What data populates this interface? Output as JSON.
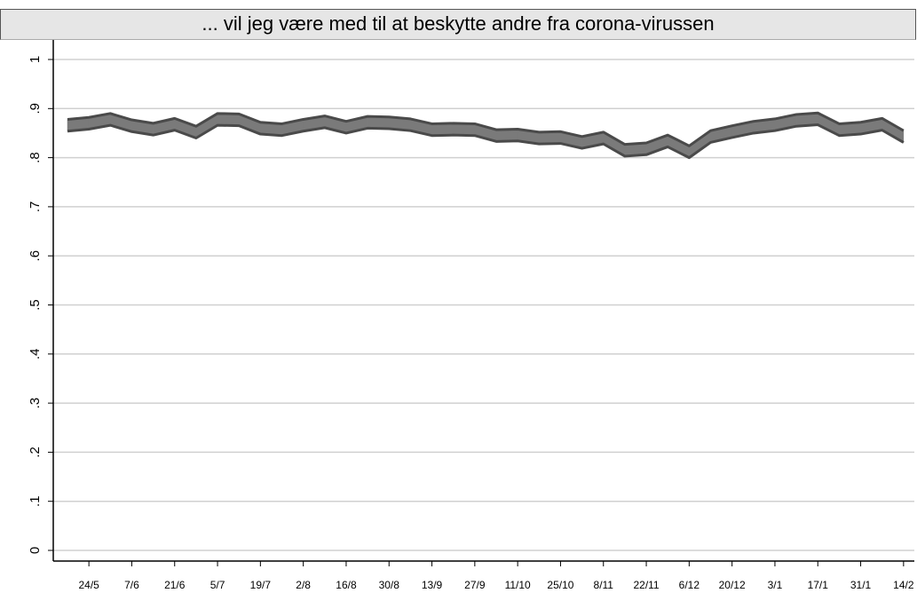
{
  "chart_data": {
    "type": "band",
    "title": "... vil jeg være med til at beskytte andre fra corona-virussen",
    "categories": [
      null,
      "24/5",
      null,
      "7/6",
      null,
      "21/6",
      null,
      "5/7",
      null,
      "19/7",
      null,
      "2/8",
      null,
      "16/8",
      null,
      "30/8",
      null,
      "13/9",
      null,
      "27/9",
      null,
      "11/10",
      null,
      "25/10",
      null,
      "8/11",
      null,
      "22/11",
      null,
      "6/12",
      null,
      "20/12",
      null,
      "3/1",
      null,
      "17/1",
      null,
      "31/1",
      null,
      "14/2"
    ],
    "lower": [
      0.854,
      0.858,
      0.866,
      0.853,
      0.846,
      0.856,
      0.84,
      0.866,
      0.865,
      0.848,
      0.845,
      0.854,
      0.861,
      0.85,
      0.86,
      0.859,
      0.855,
      0.845,
      0.846,
      0.845,
      0.833,
      0.834,
      0.828,
      0.829,
      0.819,
      0.828,
      0.803,
      0.806,
      0.822,
      0.8,
      0.831,
      0.841,
      0.85,
      0.855,
      0.864,
      0.867,
      0.845,
      0.848,
      0.856,
      0.831
    ],
    "upper": [
      0.878,
      0.882,
      0.89,
      0.877,
      0.87,
      0.88,
      0.864,
      0.89,
      0.889,
      0.872,
      0.869,
      0.878,
      0.885,
      0.874,
      0.884,
      0.883,
      0.879,
      0.869,
      0.87,
      0.869,
      0.857,
      0.858,
      0.852,
      0.853,
      0.843,
      0.852,
      0.827,
      0.83,
      0.846,
      0.824,
      0.855,
      0.865,
      0.874,
      0.879,
      0.888,
      0.891,
      0.869,
      0.872,
      0.88,
      0.855
    ],
    "fill_color": "#7a7a7a",
    "edge_color": "#4a4a4a",
    "ylim": [
      0,
      1
    ],
    "yticks": [
      0,
      {
        "value": 0.1,
        "label": ".1"
      },
      {
        "value": 0.2,
        "label": ".2"
      },
      {
        "value": 0.3,
        "label": ".3"
      },
      {
        "value": 0.4,
        "label": ".4"
      },
      {
        "value": 0.5,
        "label": ".5"
      },
      {
        "value": 0.6,
        "label": ".6"
      },
      {
        "value": 0.7,
        "label": ".7"
      },
      {
        "value": 0.8,
        "label": ".8"
      },
      {
        "value": 0.9,
        "label": ".9"
      },
      1
    ],
    "grid": true
  }
}
